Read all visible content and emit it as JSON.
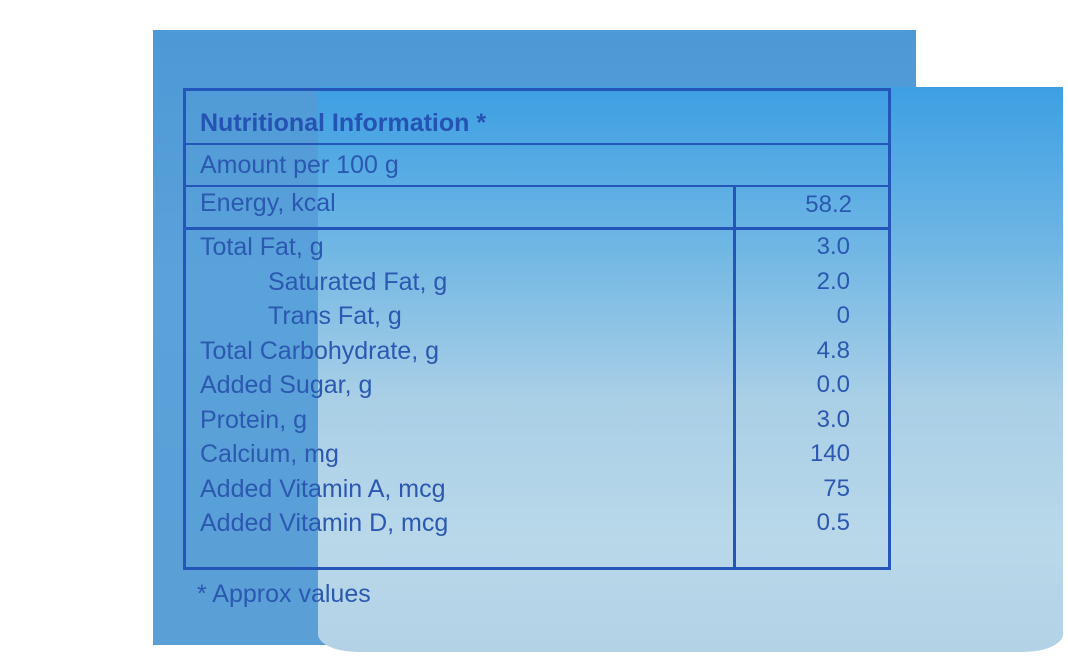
{
  "label": {
    "title": "Nutritional Information *",
    "serving": "Amount per 100 g",
    "energy": {
      "label": "Energy, kcal",
      "value": "58.2"
    },
    "nutrients": [
      {
        "label": "Total Fat, g",
        "value": "3.0",
        "indent": false
      },
      {
        "label": "Saturated Fat, g",
        "value": "2.0",
        "indent": true
      },
      {
        "label": "Trans Fat, g",
        "value": "0",
        "indent": true
      },
      {
        "label": "Total Carbohydrate, g",
        "value": "4.8",
        "indent": false
      },
      {
        "label": "Added Sugar, g",
        "value": "0.0",
        "indent": false
      },
      {
        "label": "Protein, g",
        "value": "3.0",
        "indent": false
      },
      {
        "label": "Calcium, mg",
        "value": "140",
        "indent": false
      },
      {
        "label": "Added Vitamin A, mcg",
        "value": "75",
        "indent": false
      },
      {
        "label": "Added Vitamin D, mcg",
        "value": "0.5",
        "indent": false
      }
    ],
    "footnote": "* Approx values"
  },
  "colors": {
    "ink": "#2b58b0",
    "label_blue_top": "#3d9fe3",
    "label_blue_bottom": "#b9d8ea",
    "packaging_blue": "#5aa2da"
  }
}
